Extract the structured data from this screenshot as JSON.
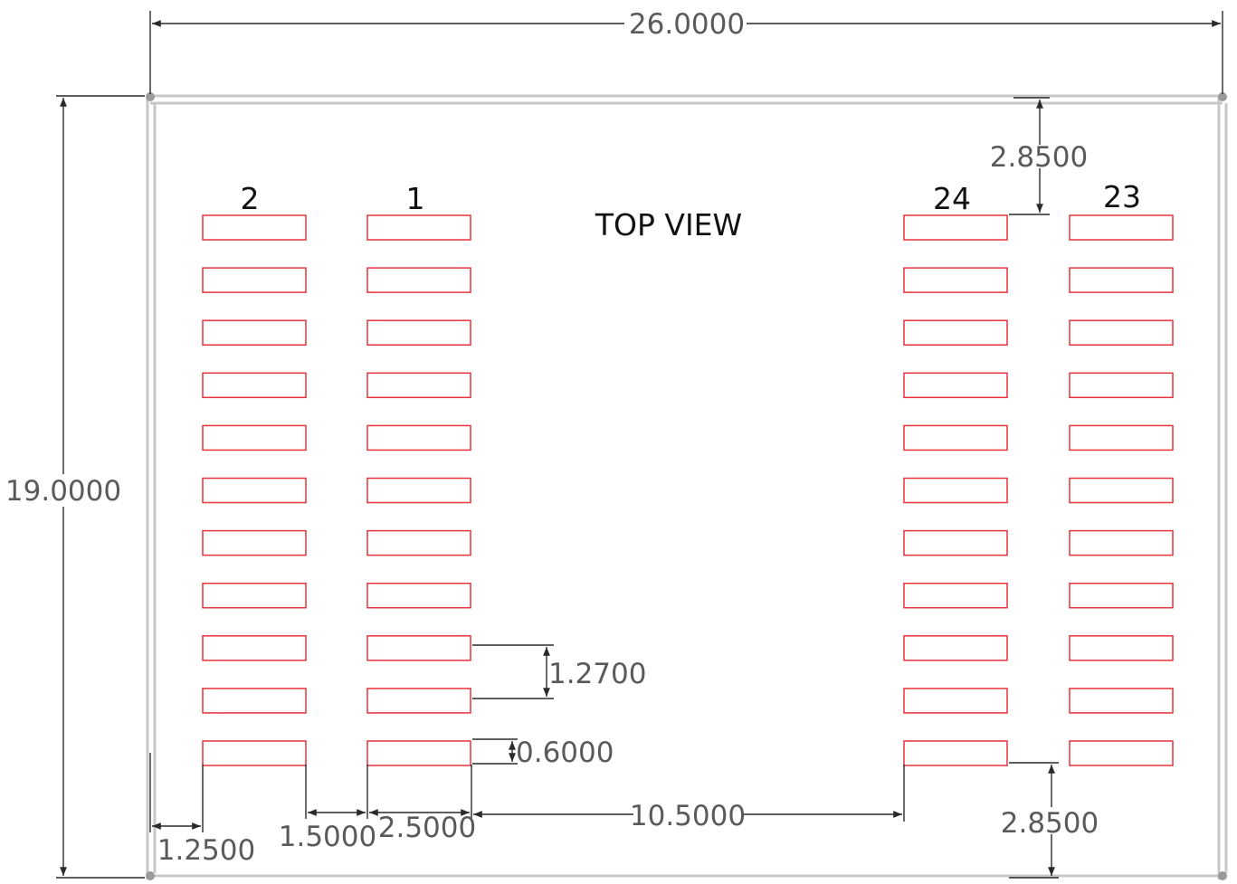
{
  "title": "TOP VIEW",
  "pin_labels": {
    "col_outer_left": "2",
    "col_inner_left": "1",
    "col_inner_right": "24",
    "col_outer_right": "23"
  },
  "dimensions": {
    "width": "26.0000",
    "height": "19.0000",
    "top_clearance": "2.8500",
    "bottom_clearance": "2.8500",
    "pitch": "1.2700",
    "pad_height": "0.6000",
    "edge_offset": "1.2500",
    "column_gap": "1.5000",
    "pad_length": "2.5000",
    "center_gap": "10.5000"
  },
  "pads_per_column": 11,
  "colors": {
    "pad_outline": "#e8323c",
    "board_edge": "#c8c8c8",
    "dimension_line": "#2a2a2a",
    "dimension_text": "#5a5a5a"
  }
}
